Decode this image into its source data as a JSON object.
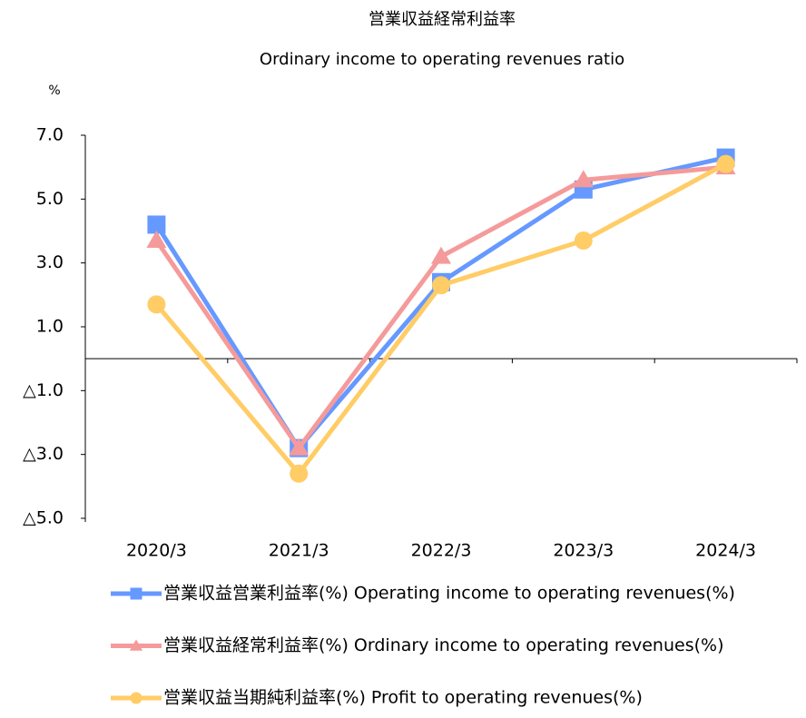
{
  "chart_data": {
    "type": "line",
    "title": "営業収益経常利益率",
    "subtitle": "Ordinary income to operating revenues ratio",
    "y_unit": "%",
    "categories": [
      "2020/3",
      "2021/3",
      "2022/3",
      "2023/3",
      "2024/3"
    ],
    "series": [
      {
        "name": "営業収益営業利益率(%) Operating income to operating revenues(%)",
        "color": "#6699ff",
        "marker": "square",
        "values": [
          4.2,
          -2.8,
          2.4,
          5.3,
          6.3
        ]
      },
      {
        "name": "営業収益経常利益率(%) Ordinary income to operating revenues(%)",
        "color": "#f59a9a",
        "marker": "triangle",
        "values": [
          3.7,
          -2.8,
          3.2,
          5.6,
          6.0
        ]
      },
      {
        "name": "営業収益当期純利益率(%) Profit to operating revenues(%)",
        "color": "#ffcc66",
        "marker": "circle",
        "values": [
          1.7,
          -3.6,
          2.3,
          3.7,
          6.1
        ]
      }
    ],
    "ylim": [
      -5,
      7
    ],
    "yticks": [
      {
        "value": 7,
        "label": "7.0"
      },
      {
        "value": 5,
        "label": "5.0"
      },
      {
        "value": 3,
        "label": "3.0"
      },
      {
        "value": 1,
        "label": "1.0"
      },
      {
        "value": -1,
        "label": "△1.0"
      },
      {
        "value": -3,
        "label": "△3.0"
      },
      {
        "value": -5,
        "label": "△5.0"
      }
    ],
    "grid": false,
    "legend": "bottom"
  }
}
